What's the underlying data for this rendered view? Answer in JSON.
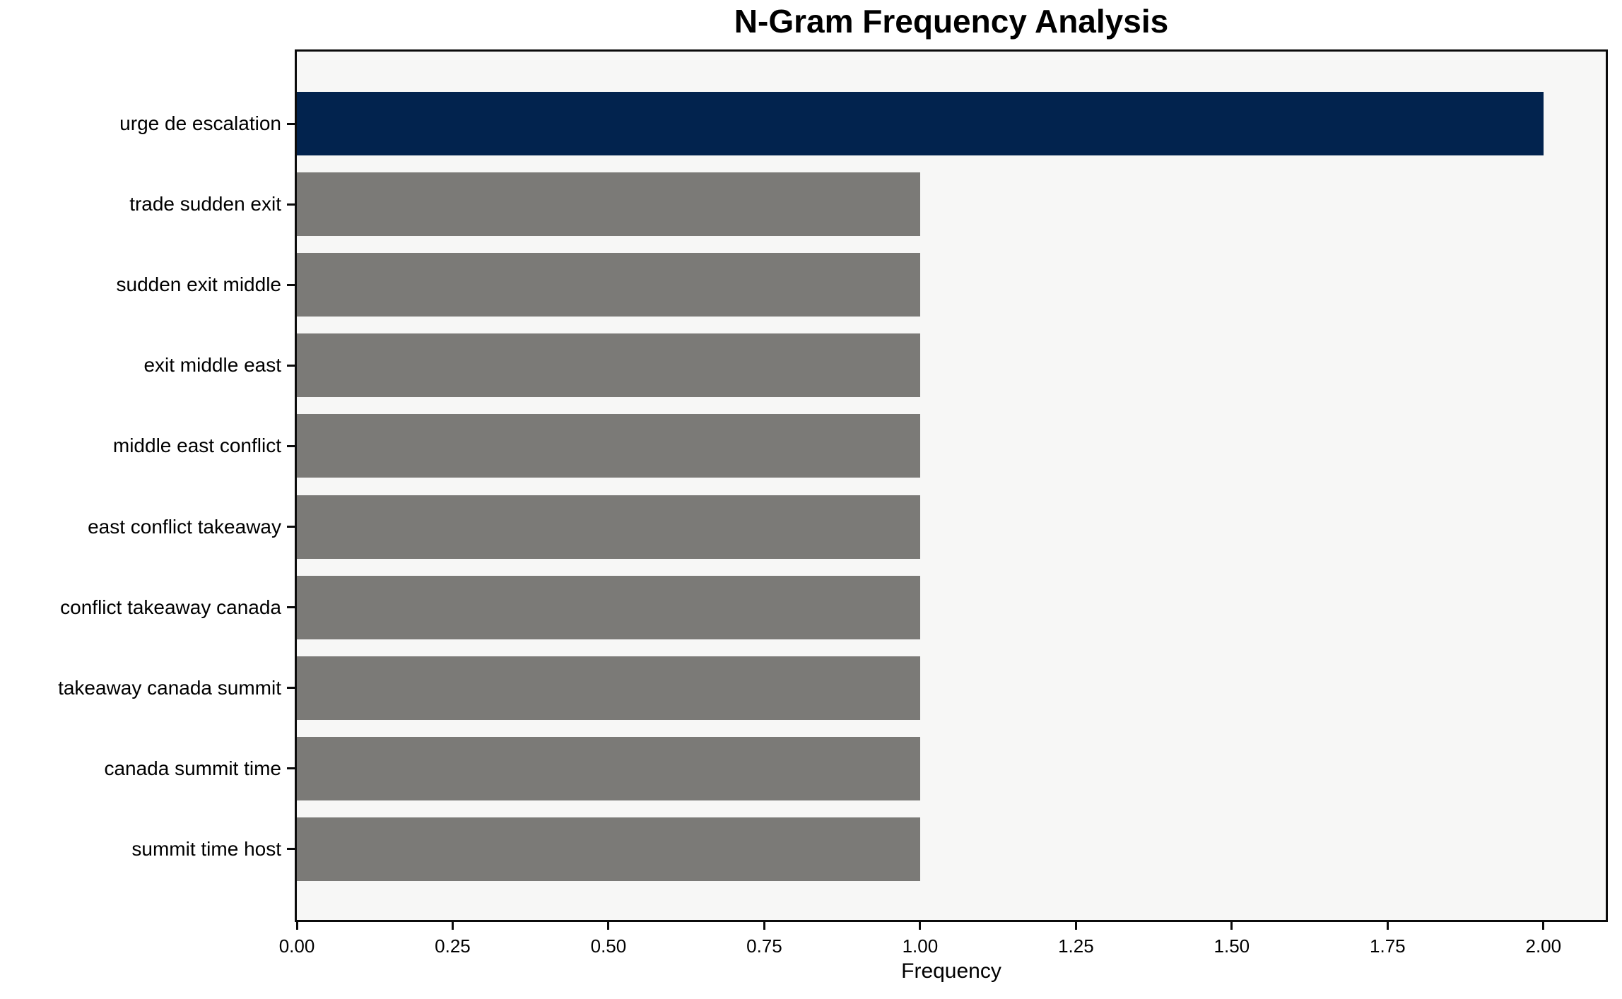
{
  "title": "N-Gram Frequency Analysis",
  "xlabel": "Frequency",
  "chart_data": {
    "type": "bar",
    "orientation": "horizontal",
    "title": "N-Gram Frequency Analysis",
    "xlabel": "Frequency",
    "ylabel": "",
    "categories": [
      "urge de escalation",
      "trade sudden exit",
      "sudden exit middle",
      "exit middle east",
      "middle east conflict",
      "east conflict takeaway",
      "conflict takeaway canada",
      "takeaway canada summit",
      "canada summit time",
      "summit time host"
    ],
    "values": [
      2,
      1,
      1,
      1,
      1,
      1,
      1,
      1,
      1,
      1
    ],
    "xlim": [
      0,
      2.1
    ],
    "xticks": [
      {
        "value": 0,
        "label": "0.00"
      },
      {
        "value": 0.25,
        "label": "0.25"
      },
      {
        "value": 0.5,
        "label": "0.50"
      },
      {
        "value": 0.75,
        "label": "0.75"
      },
      {
        "value": 1.0,
        "label": "1.00"
      },
      {
        "value": 1.25,
        "label": "1.25"
      },
      {
        "value": 1.5,
        "label": "1.50"
      },
      {
        "value": 1.75,
        "label": "1.75"
      },
      {
        "value": 2.0,
        "label": "2.00"
      }
    ],
    "grid": false,
    "legend": false,
    "colors": {
      "highlight_bar": "#02234E",
      "default_bar": "#7B7A77",
      "bar_colors": [
        "#02234E",
        "#7B7A77",
        "#7B7A77",
        "#7B7A77",
        "#7B7A77",
        "#7B7A77",
        "#7B7A77",
        "#7B7A77",
        "#7B7A77",
        "#7B7A77"
      ],
      "plot_background": "#F7F7F6",
      "figure_background": "#FFFFFF",
      "axis": "#0B0B0B",
      "text": "#000000"
    }
  }
}
